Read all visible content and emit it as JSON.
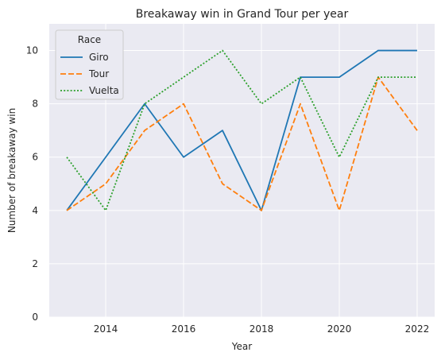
{
  "chart_data": {
    "type": "line",
    "title": "Breakaway win in Grand Tour per year",
    "xlabel": "Year",
    "ylabel": "Number of breakaway win",
    "x": [
      2013,
      2014,
      2015,
      2016,
      2017,
      2018,
      2019,
      2020,
      2021,
      2022
    ],
    "xlim": [
      2012.55,
      2022.45
    ],
    "ylim": [
      0,
      11
    ],
    "xticks": [
      2014,
      2016,
      2018,
      2020,
      2022
    ],
    "yticks": [
      0,
      2,
      4,
      6,
      8,
      10
    ],
    "grid": true,
    "legend": {
      "title": "Race",
      "position": "top-left"
    },
    "series": [
      {
        "name": "Giro",
        "color": "#1f77b4",
        "style": "solid",
        "values": [
          4,
          6,
          8,
          6,
          7,
          4,
          9,
          9,
          10,
          10
        ]
      },
      {
        "name": "Tour",
        "color": "#ff7f0e",
        "style": "dashed",
        "values": [
          4,
          5,
          7,
          8,
          5,
          4,
          8,
          4,
          9,
          7
        ]
      },
      {
        "name": "Vuelta",
        "color": "#2ca02c",
        "style": "dotted",
        "values": [
          6,
          4,
          8,
          9,
          10,
          8,
          9,
          6,
          9,
          9
        ]
      }
    ]
  }
}
